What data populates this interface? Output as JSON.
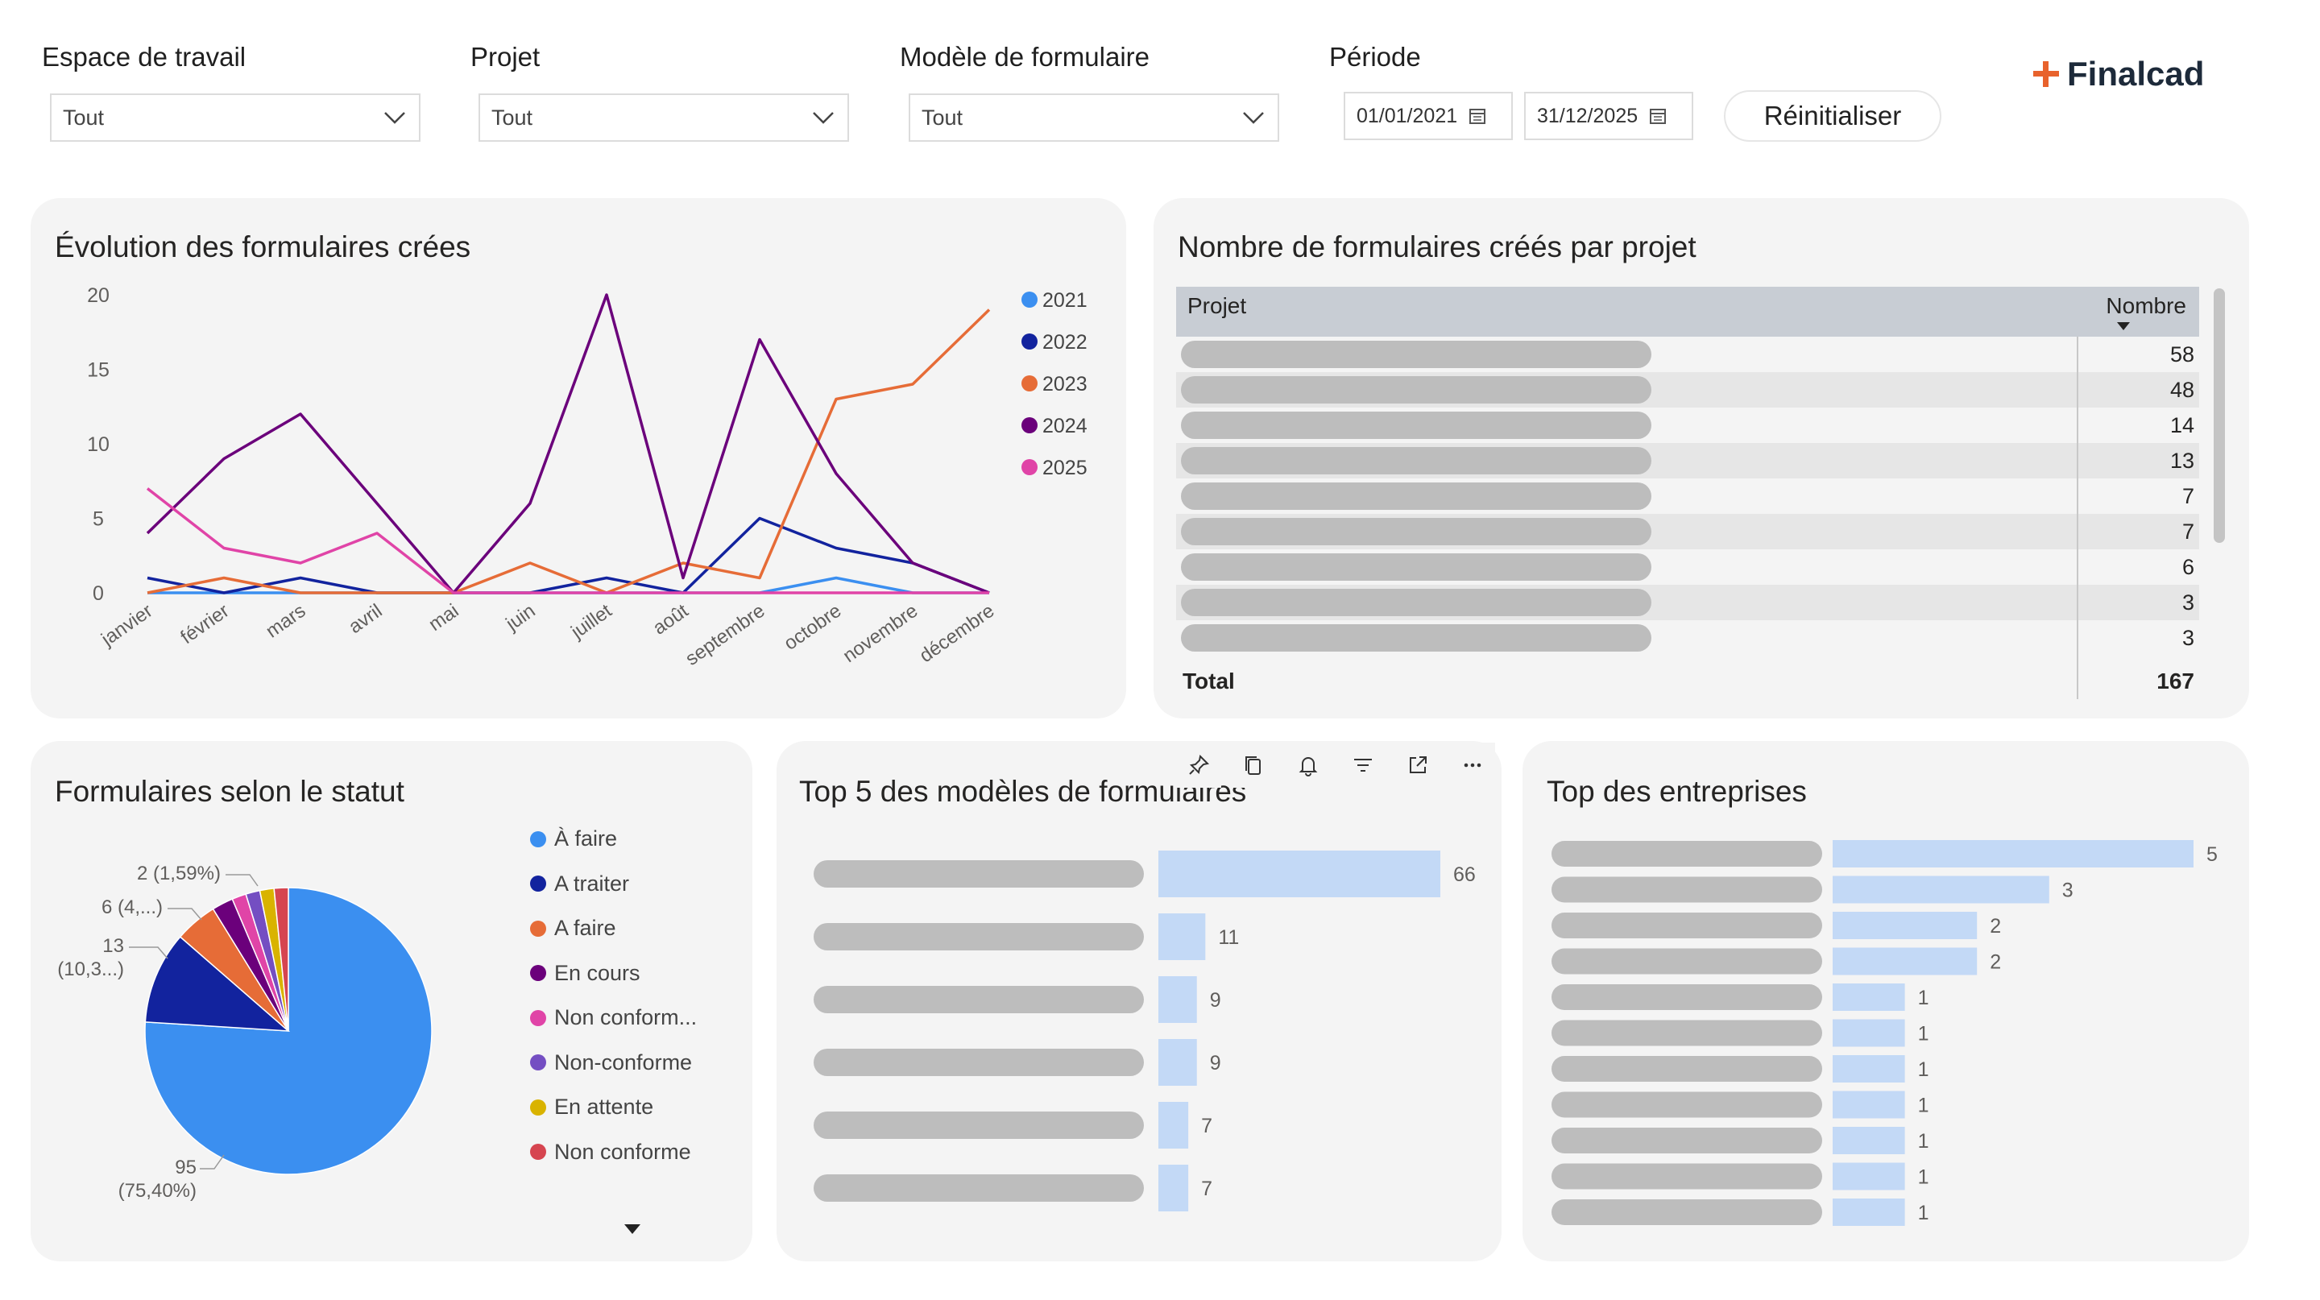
{
  "filters": {
    "workspace": {
      "label": "Espace de travail",
      "value": "Tout"
    },
    "project": {
      "label": "Projet",
      "value": "Tout"
    },
    "form_model": {
      "label": "Modèle de formulaire",
      "value": "Tout"
    },
    "period": {
      "label": "Période",
      "start": "01/01/2021",
      "end": "31/12/2025"
    },
    "reset_label": "Réinitialiser"
  },
  "logo": {
    "text": "Finalcad",
    "accent": "#e8622c"
  },
  "cards": {
    "evolution": {
      "title": "Évolution des formulaires crées"
    },
    "per_project": {
      "title": "Nombre de formulaires créés par projet",
      "col_project": "Projet",
      "col_count": "Nombre",
      "rows": [
        58,
        48,
        14,
        13,
        7,
        7,
        6,
        3,
        3
      ],
      "total_label": "Total",
      "total_value": "167"
    },
    "status": {
      "title": "Formulaires selon le statut",
      "legend": [
        {
          "label": "À faire",
          "color": "#3b8ff0"
        },
        {
          "label": "A traiter",
          "color": "#12239e"
        },
        {
          "label": "A faire",
          "color": "#e66c37"
        },
        {
          "label": "En cours",
          "color": "#6b007b"
        },
        {
          "label": "Non conform...",
          "color": "#e044a7"
        },
        {
          "label": "Non-conforme",
          "color": "#744ec2"
        },
        {
          "label": "En attente",
          "color": "#d9b300"
        },
        {
          "label": "Non conforme",
          "color": "#d64550"
        }
      ],
      "labels": {
        "big_count": "95",
        "big_pct": "(75,40%)",
        "l13": "13",
        "l13_pct": "(10,3...)",
        "l6": "6 (4,...)",
        "l2": "2 (1,59%)"
      }
    },
    "top5": {
      "title": "Top 5 des modèles de formulaires",
      "values": [
        66,
        11,
        9,
        9,
        7,
        7
      ]
    },
    "companies": {
      "title": "Top des entreprises",
      "values": [
        5,
        3,
        2,
        2,
        1,
        1,
        1,
        1,
        1,
        1,
        1
      ]
    }
  },
  "chart_data": [
    {
      "type": "line",
      "title": "Évolution des formulaires crées",
      "categories": [
        "janvier",
        "février",
        "mars",
        "avril",
        "mai",
        "juin",
        "juillet",
        "août",
        "septembre",
        "octobre",
        "novembre",
        "décembre"
      ],
      "ylim": [
        0,
        20
      ],
      "yticks": [
        0,
        5,
        10,
        15,
        20
      ],
      "legend_position": "right",
      "series": [
        {
          "name": "2021",
          "color": "#3b8ff0",
          "values": [
            0,
            0,
            0,
            0,
            0,
            0,
            0,
            0,
            0,
            1,
            0,
            0
          ]
        },
        {
          "name": "2022",
          "color": "#12239e",
          "values": [
            1,
            0,
            1,
            0,
            0,
            0,
            1,
            0,
            5,
            3,
            2,
            0
          ]
        },
        {
          "name": "2023",
          "color": "#e66c37",
          "values": [
            0,
            1,
            0,
            0,
            0,
            2,
            0,
            2,
            1,
            13,
            14,
            19
          ]
        },
        {
          "name": "2024",
          "color": "#6b007b",
          "values": [
            4,
            9,
            12,
            6,
            0,
            6,
            20,
            1,
            17,
            8,
            2,
            0
          ]
        },
        {
          "name": "2025",
          "color": "#e044a7",
          "values": [
            7,
            3,
            2,
            4,
            0,
            0,
            0,
            0,
            0,
            0,
            0,
            0
          ]
        }
      ]
    },
    {
      "type": "pie",
      "title": "Formulaires selon le statut",
      "categories": [
        "À faire",
        "A traiter",
        "A faire",
        "En cours",
        "Non conform...",
        "Non-conforme",
        "En attente",
        "Non conforme"
      ],
      "values": [
        95,
        13,
        6,
        3,
        2,
        2,
        2,
        2
      ]
    },
    {
      "type": "bar",
      "title": "Top 5 des modèles de formulaires",
      "values": [
        66,
        11,
        9,
        9,
        7,
        7
      ]
    },
    {
      "type": "bar",
      "title": "Top des entreprises",
      "values": [
        5,
        3,
        2,
        2,
        1,
        1,
        1,
        1,
        1,
        1,
        1
      ]
    }
  ]
}
